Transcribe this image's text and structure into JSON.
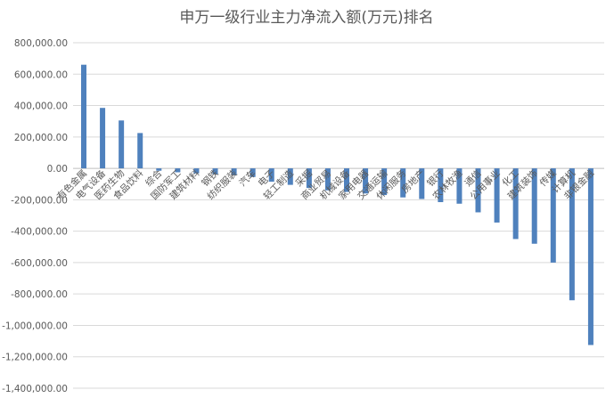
{
  "chart_data": {
    "type": "bar",
    "title": "申万一级行业主力净流入额(万元)排名",
    "xlabel": "",
    "ylabel": "",
    "ylim": [
      -1400000,
      800000
    ],
    "yticks": [
      800000,
      600000,
      400000,
      200000,
      0,
      -200000,
      -400000,
      -600000,
      -800000,
      -1000000,
      -1200000,
      -1400000
    ],
    "ytick_labels": [
      "800,000.00",
      "600,000.00",
      "400,000.00",
      "200,000.00",
      "0.00",
      "-200,000.00",
      "-400,000.00",
      "-600,000.00",
      "-800,000.00",
      "-1,000,000.00",
      "-1,200,000.00",
      "-1,400,000.00"
    ],
    "grid": true,
    "legend": "none",
    "bar_color": "#4f81bd",
    "categories": [
      "有色金属",
      "电气设备",
      "医药生物",
      "食品饮料",
      "综合",
      "国防军工",
      "建筑材料",
      "钢铁",
      "纺织服装",
      "汽车",
      "电子",
      "轻工制造",
      "采掘",
      "商业贸易",
      "机械设备",
      "家用电器",
      "交通运输",
      "休闲服务",
      "房地产",
      "银行",
      "农林牧渔",
      "通信",
      "公用事业",
      "化工",
      "建筑装饰",
      "传媒",
      "计算机",
      "非银金融"
    ],
    "values": [
      660000,
      385000,
      305000,
      225000,
      -15000,
      -25000,
      -32000,
      -38000,
      -42000,
      -55000,
      -85000,
      -105000,
      -125000,
      -140000,
      -150000,
      -160000,
      -170000,
      -185000,
      -195000,
      -215000,
      -225000,
      -280000,
      -345000,
      -450000,
      -480000,
      -600000,
      -840000,
      -1125000
    ]
  }
}
